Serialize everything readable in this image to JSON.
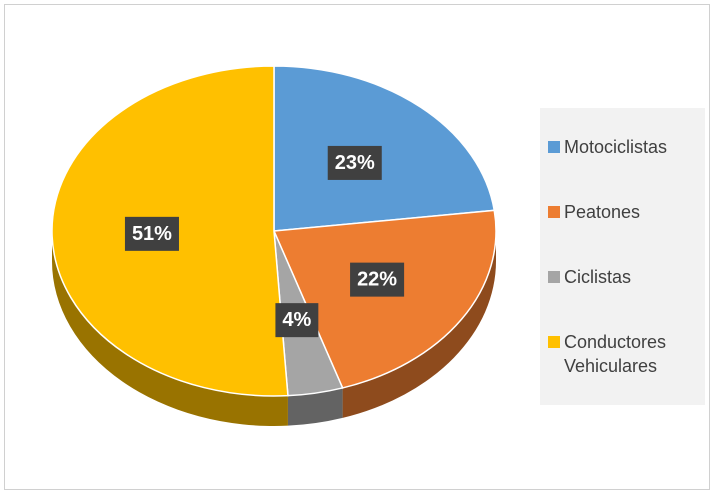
{
  "chart_data": {
    "type": "pie",
    "categories": [
      "Motociclistas",
      "Peatones",
      "Ciclistas",
      "Conductores Vehiculares"
    ],
    "values": [
      23,
      22,
      4,
      51
    ],
    "value_labels": [
      "23%",
      "22%",
      "4%",
      "51%"
    ],
    "colors": [
      "#5b9bd5",
      "#ed7d31",
      "#a5a5a5",
      "#ffc000"
    ],
    "legend": "right"
  }
}
